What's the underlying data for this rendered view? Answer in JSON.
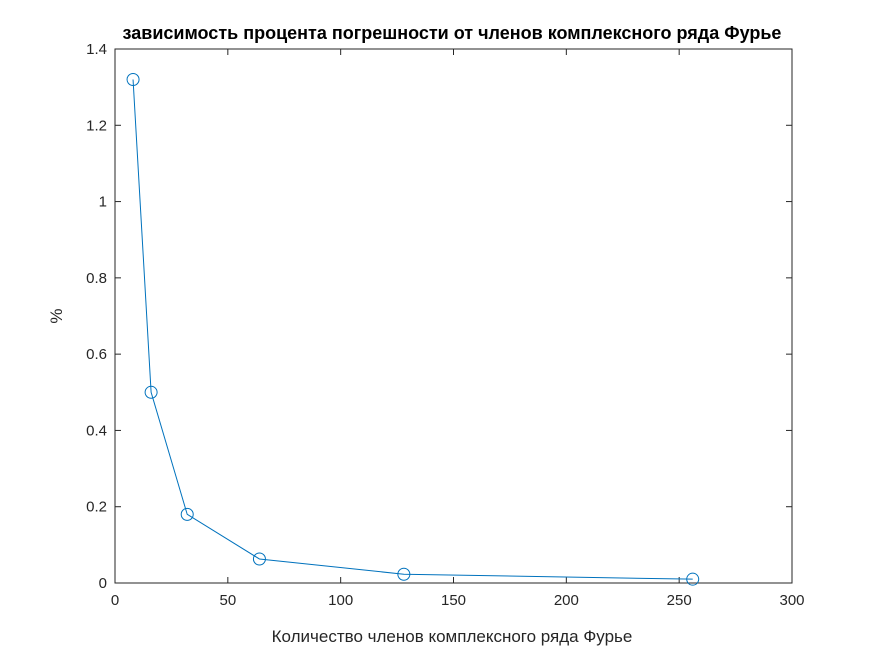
{
  "chart_data": {
    "type": "line",
    "title": "зависимость процента погрешности от членов комплексного ряда Фурье",
    "xlabel": "Количество членов комплексного ряда Фурье",
    "ylabel": "%",
    "xlim": [
      0,
      300
    ],
    "ylim": [
      0,
      1.4
    ],
    "xticks": [
      "0",
      "50",
      "100",
      "150",
      "200",
      "250",
      "300"
    ],
    "yticks": [
      "0",
      "0.2",
      "0.4",
      "0.6",
      "0.8",
      "1",
      "1.2",
      "1.4"
    ],
    "grid": false,
    "legend": "none",
    "marker": "circle",
    "line_color": "#0072BD",
    "x": [
      8,
      16,
      32,
      64,
      128,
      256
    ],
    "y": [
      1.32,
      0.5,
      0.18,
      0.063,
      0.023,
      0.01
    ]
  }
}
